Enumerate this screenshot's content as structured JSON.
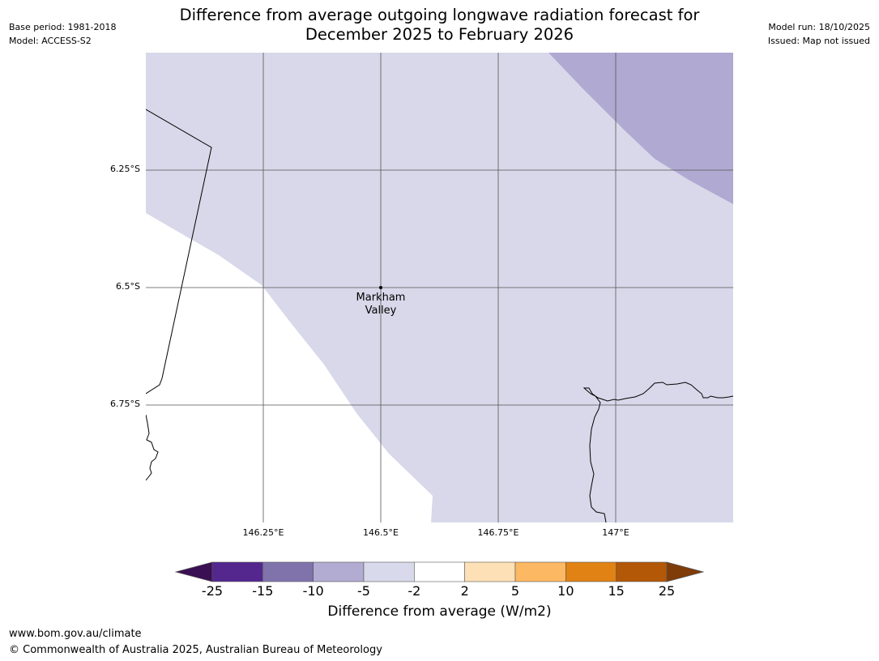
{
  "header": {
    "title_line1": "Difference from average outgoing longwave radiation forecast for",
    "title_line2": "December 2025 to February 2026",
    "base_period": "Base period: 1981-2018",
    "model": "Model: ACCESS-S2",
    "model_run": "Model run: 18/10/2025",
    "issued": "Issued: Map not issued"
  },
  "map": {
    "lat_labels": [
      "6.25°S",
      "6.5°S",
      "6.75°S"
    ],
    "lon_labels": [
      "146.25°E",
      "146.5°E",
      "146.75°E",
      "147°E"
    ],
    "place": {
      "name_line1": "Markham",
      "name_line2": "Valley"
    },
    "colors": {
      "light_lavender": "#d8d8ea",
      "medium_lavender": "#b0a9d1",
      "gridline": "#555555",
      "coast": "#000000"
    }
  },
  "colorbar": {
    "label": "Difference from average (W/m2)",
    "ticks": [
      "-25",
      "-15",
      "-10",
      "-5",
      "-2",
      "2",
      "5",
      "10",
      "15",
      "25"
    ],
    "under_color": "#3b0f53",
    "over_color": "#7f3b08",
    "bins": [
      {
        "range": "-25 to -15",
        "color": "#54278f"
      },
      {
        "range": "-15 to -10",
        "color": "#8073ac"
      },
      {
        "range": "-10 to -5",
        "color": "#b2abd2"
      },
      {
        "range": "-5 to -2",
        "color": "#d8daeb"
      },
      {
        "range": "-2 to 2",
        "color": "#ffffff"
      },
      {
        "range": "2 to 5",
        "color": "#fee0b6"
      },
      {
        "range": "5 to 10",
        "color": "#fdb863"
      },
      {
        "range": "10 to 15",
        "color": "#e08214"
      },
      {
        "range": "15 to 25",
        "color": "#b35806"
      }
    ]
  },
  "footer": {
    "url": "www.bom.gov.au/climate",
    "copyright": "© Commonwealth of Australia 2025, Australian Bureau of Meteorology"
  }
}
